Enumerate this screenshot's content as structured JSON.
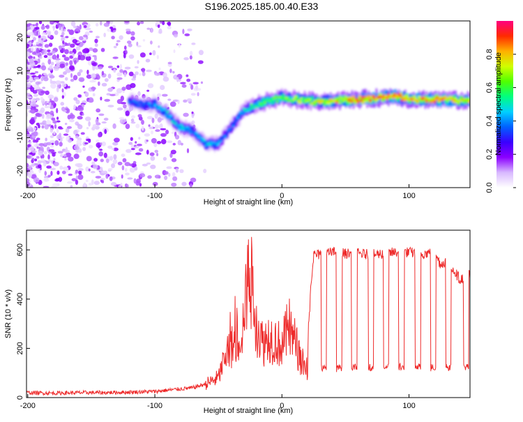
{
  "title": "S196.2025.185.00.40.E33",
  "colors": {
    "snr_line": "#ee2a2a",
    "colormap": [
      "#ffffff",
      "#d8b8ff",
      "#8b00ff",
      "#3a00ff",
      "#0060ff",
      "#00d0ff",
      "#00ff80",
      "#50ff00",
      "#d0ff00",
      "#ffb000",
      "#ff2a00",
      "#ff0080"
    ]
  },
  "chart_data": [
    {
      "type": "heatmap",
      "xlabel": "Height of straight line (km)",
      "ylabel": "Frequency (Hz)",
      "xlim": [
        -201,
        148
      ],
      "ylim": [
        -25,
        25
      ],
      "x_ticks": [
        -200,
        -100,
        0,
        100
      ],
      "y_ticks": [
        20,
        10,
        0,
        -10,
        -20
      ],
      "colorbar": {
        "label": "Normalized spectral amplitude",
        "range": [
          0,
          1
        ],
        "ticks": [
          "0.0",
          "0.2",
          "0.4",
          "0.6",
          "0.8"
        ],
        "tick_values": [
          0.0,
          0.2,
          0.4,
          0.6,
          0.8
        ]
      },
      "ridge": {
        "x": [
          -120,
          -110,
          -100,
          -90,
          -80,
          -70,
          -60,
          -50,
          -40,
          -30,
          -20,
          -10,
          0,
          20,
          40,
          60,
          80,
          90,
          100,
          120,
          148
        ],
        "frequency": [
          1,
          0,
          0,
          -3,
          -7,
          -8,
          -12,
          -12,
          -7,
          -2,
          0,
          1,
          2,
          1,
          1,
          1.5,
          2,
          2.5,
          1.5,
          1.5,
          1
        ],
        "amplitude": [
          0.35,
          0.35,
          0.4,
          0.45,
          0.45,
          0.4,
          0.45,
          0.4,
          0.35,
          0.45,
          0.55,
          0.6,
          0.6,
          0.7,
          0.75,
          0.8,
          0.85,
          0.85,
          0.8,
          0.8,
          0.75
        ]
      },
      "noise_region": {
        "x": [
          -201,
          -60
        ],
        "amplitude": 0.1
      }
    },
    {
      "type": "line",
      "xlabel": "Height of straight line (km)",
      "ylabel": "SNR (10 * v/v)",
      "xlim": [
        -201,
        148
      ],
      "ylim": [
        0,
        680
      ],
      "x_ticks": [
        -200,
        -100,
        0,
        100
      ],
      "y_ticks": [
        0,
        200,
        400,
        600
      ],
      "series": [
        {
          "x": [
            -201,
            -180,
            -160,
            -140,
            -120,
            -100,
            -80,
            -70,
            -60,
            -50,
            -45,
            -40,
            -35,
            -30,
            -27,
            -25,
            -20,
            -15,
            -10,
            -5,
            0,
            5,
            10,
            15,
            20,
            22,
            25,
            30,
            40,
            50,
            60,
            70,
            80,
            90,
            100,
            110,
            120,
            125,
            130,
            140,
            148
          ],
          "y": [
            20,
            18,
            20,
            20,
            22,
            25,
            35,
            40,
            55,
            80,
            160,
            200,
            240,
            300,
            450,
            500,
            300,
            220,
            250,
            230,
            210,
            280,
            230,
            150,
            120,
            420,
            580,
            580,
            590,
            585,
            585,
            580,
            585,
            590,
            590,
            585,
            590,
            540,
            560,
            480,
            500
          ],
          "drops": {
            "x": [
              33,
              45,
              57,
              70,
              82,
              94,
              107,
              119,
              131,
              145
            ],
            "y": [
              110,
              110,
              110,
              110,
              110,
              110,
              110,
              110,
              110,
              110
            ]
          }
        }
      ]
    }
  ]
}
